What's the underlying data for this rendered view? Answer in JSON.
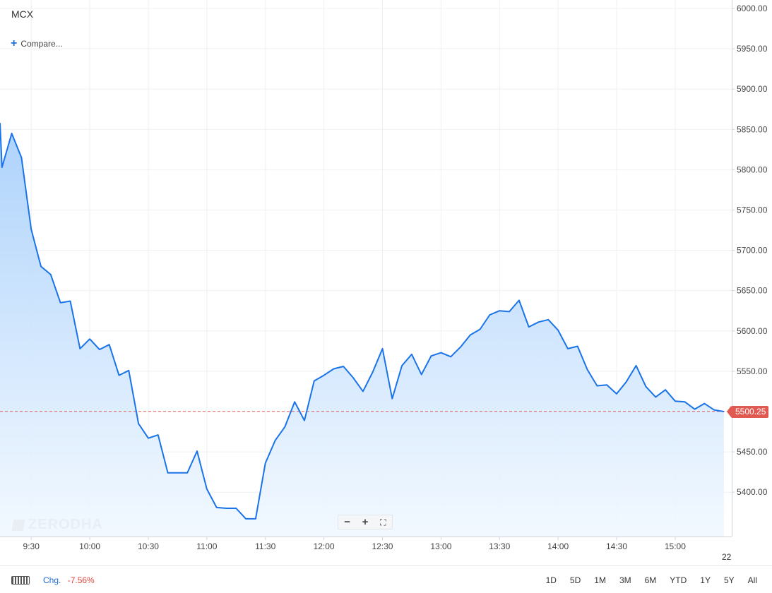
{
  "symbol": "MCX",
  "compare_label": "Compare...",
  "watermark": "ZERODHA",
  "zoom": {
    "minus": "−",
    "plus": "+",
    "fit": "⛶"
  },
  "footer": {
    "chg_label": "Chg.",
    "chg_value": "-7.56%",
    "ranges": [
      "1D",
      "5D",
      "1M",
      "3M",
      "6M",
      "YTD",
      "1Y",
      "5Y",
      "All"
    ]
  },
  "date_marker": "22",
  "colors": {
    "line": "#1a73e8",
    "area_top": "#a9d0fb",
    "area_bottom": "#f1f8ff",
    "ref": "#e05a52",
    "tag": "#e05a52"
  },
  "chart_data": {
    "type": "area",
    "title": "",
    "xlabel": "",
    "ylabel": "",
    "last_price": "5500.25",
    "ref_value": 5500.25,
    "ylim": [
      5335,
      6010
    ],
    "y_ticks": [
      "6000.00",
      "5950.00",
      "5900.00",
      "5850.00",
      "5800.00",
      "5750.00",
      "5700.00",
      "5650.00",
      "5600.00",
      "5550.00",
      "5500.00",
      "5450.00",
      "5400.00"
    ],
    "y_tick_values": [
      6000,
      5950,
      5900,
      5850,
      5800,
      5750,
      5700,
      5650,
      5600,
      5550,
      5500,
      5450,
      5400
    ],
    "x_ticks": [
      "9:30",
      "10:00",
      "10:30",
      "11:00",
      "11:30",
      "12:00",
      "12:30",
      "13:00",
      "13:30",
      "14:00",
      "14:30",
      "15:00"
    ],
    "x_tick_minutes": [
      570,
      600,
      630,
      660,
      690,
      720,
      750,
      780,
      810,
      840,
      870,
      900
    ],
    "xlim_minutes": [
      554,
      929
    ],
    "grid": true,
    "series": [
      {
        "minutes": [
          554,
          555,
          560,
          565,
          570,
          575,
          580,
          585,
          590,
          595,
          600,
          605,
          610,
          615,
          620,
          625,
          630,
          635,
          640,
          645,
          650,
          655,
          660,
          665,
          670,
          675,
          680,
          685,
          690,
          695,
          700,
          705,
          710,
          715,
          720,
          725,
          730,
          735,
          740,
          745,
          750,
          755,
          760,
          765,
          770,
          775,
          780,
          785,
          790,
          795,
          800,
          805,
          810,
          815,
          820,
          825,
          830,
          835,
          840,
          845,
          850,
          855,
          860,
          865,
          870,
          875,
          880,
          885,
          890,
          895,
          900,
          905,
          910,
          915,
          920,
          925
        ],
        "values": [
          5858,
          5803,
          5845,
          5815,
          5726,
          5680,
          5670,
          5635,
          5637,
          5578,
          5590,
          5577,
          5583,
          5545,
          5551,
          5485,
          5467,
          5471,
          5424,
          5424,
          5424,
          5451,
          5404,
          5381,
          5380,
          5380,
          5367,
          5367,
          5436,
          5464,
          5481,
          5512,
          5489,
          5538,
          5545,
          5553,
          5556,
          5542,
          5525,
          5549,
          5578,
          5516,
          5557,
          5571,
          5546,
          5569,
          5573,
          5568,
          5580,
          5595,
          5602,
          5620,
          5625,
          5624,
          5638,
          5605,
          5611,
          5614,
          5601,
          5578,
          5581,
          5552,
          5532,
          5533,
          5522,
          5537,
          5557,
          5531,
          5518,
          5527,
          5513,
          5512,
          5503,
          5510,
          5502,
          5500
        ]
      }
    ]
  }
}
